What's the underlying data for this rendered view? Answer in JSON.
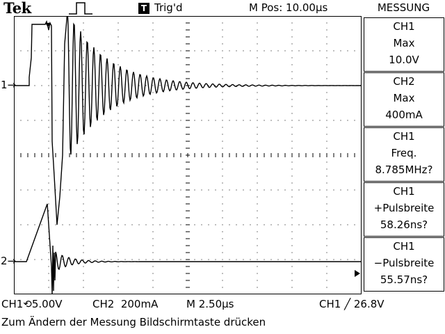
{
  "header": {
    "brand": "Tek",
    "pulse_icon": "run-pulse-icon",
    "trig_badge": "T",
    "trig_status": "Trig'd",
    "m_pos": "M Pos: 10.00µs"
  },
  "side_panel": {
    "title": "MESSUNG",
    "measurements": [
      {
        "lines": [
          "CH1",
          "Max",
          "10.0V"
        ]
      },
      {
        "lines": [
          "CH2",
          "Max",
          "400mA"
        ]
      },
      {
        "lines": [
          "CH1",
          "Freq.",
          "8.785MHz?"
        ]
      },
      {
        "lines": [
          "CH1",
          "+Pulsbreite",
          "58.26ns?"
        ]
      },
      {
        "lines": [
          "CH1",
          "−Pulsbreite",
          "55.57ns?"
        ]
      }
    ]
  },
  "channel_markers": {
    "ch1": "1",
    "ch2": "2"
  },
  "status": {
    "ch1_scale": "CH1⟲5.00V",
    "ch2_scale": "CH2  200mA",
    "time_scale": "M 2.50µs",
    "trigger": "CH1 ╱ 26.8V"
  },
  "message": "Zum Ändern der Messung Bildschirmtaste drücken",
  "colors": {
    "background": "#ffffff",
    "trace": "#000000",
    "grid": "#000000"
  }
}
